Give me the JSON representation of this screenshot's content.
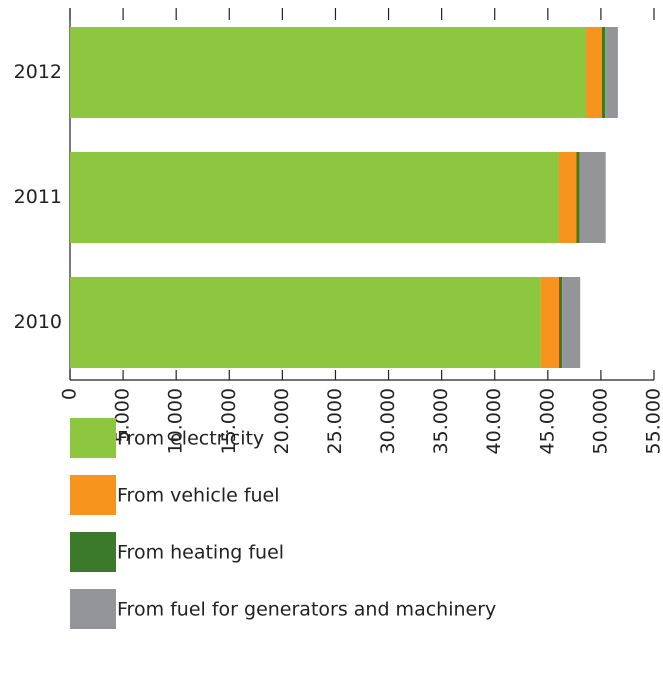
{
  "chart_data": {
    "type": "stacked-barh",
    "categories": [
      "2012",
      "2011",
      "2010"
    ],
    "series": [
      {
        "name": "From electricity",
        "color": "#8dc63f",
        "values": [
          48600,
          46000,
          44300
        ]
      },
      {
        "name": "From vehicle fuel",
        "color": "#f7941d",
        "values": [
          1500,
          1700,
          1750
        ]
      },
      {
        "name": "From heating fuel",
        "color": "#3b7a2b",
        "values": [
          300,
          300,
          300
        ]
      },
      {
        "name": "From fuel for generators and machinery",
        "color": "#939598",
        "values": [
          1200,
          2450,
          1700
        ]
      }
    ],
    "xlim": [
      0,
      55000
    ],
    "xticks": [
      0,
      {
        "value": 5000,
        "label": "5.000"
      },
      {
        "value": 10000,
        "label": "10.000"
      },
      {
        "value": 15000,
        "label": "15.000"
      },
      {
        "value": 20000,
        "label": "20.000"
      },
      {
        "value": 25000,
        "label": "25.000"
      },
      {
        "value": 30000,
        "label": "30.000"
      },
      {
        "value": 35000,
        "label": "35.000"
      },
      {
        "value": 40000,
        "label": "40.000"
      },
      {
        "value": 45000,
        "label": "45.000"
      },
      {
        "value": 50000,
        "label": "50.000"
      },
      {
        "value": 55000,
        "label": "55.000"
      }
    ]
  }
}
